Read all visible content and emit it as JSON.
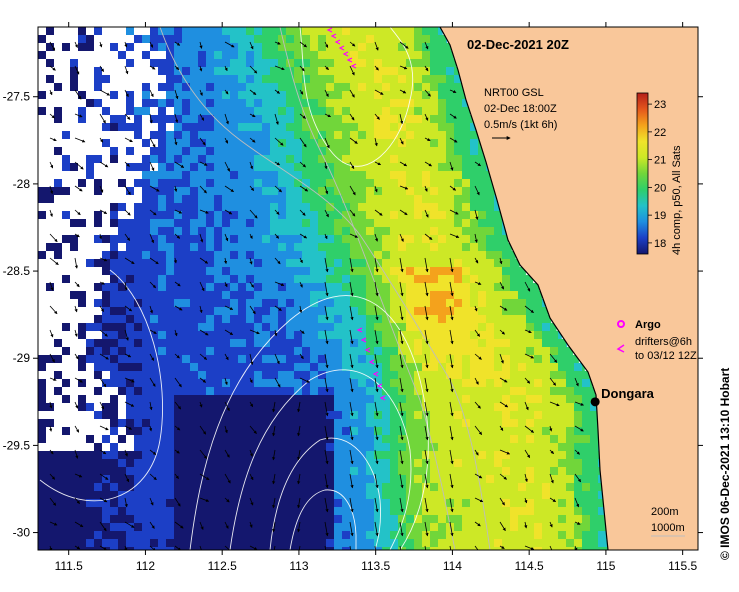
{
  "title": "02-Dec-2021 20Z",
  "current_legend": {
    "lines": [
      "NRT00 GSL",
      "02-Dec 18:00Z",
      "0.5m/s (1kt 6h)"
    ]
  },
  "colorbar": {
    "label": "4h comp, p50, All Sats",
    "ticks": [
      "18",
      "19",
      "20",
      "21",
      "22",
      "23"
    ],
    "range": [
      17.6,
      23.4
    ],
    "colors": [
      "#14176e",
      "#1c3fc6",
      "#1f8fe0",
      "#23c2c8",
      "#2fcf6a",
      "#71d63a",
      "#cde826",
      "#f0e32a",
      "#f4a21c",
      "#e4561c",
      "#b51f1a"
    ]
  },
  "map": {
    "lon_range": [
      111.3,
      115.6
    ],
    "lat_range": [
      -30.1,
      -27.1
    ],
    "x_ticks": [
      "111.5",
      "112",
      "112.5",
      "113",
      "113.5",
      "114",
      "114.5",
      "115",
      "115.5"
    ],
    "y_ticks": [
      "-27.5",
      "-28",
      "-28.5",
      "-29",
      "-29.5",
      "-30"
    ],
    "land_color": "#f9c79a",
    "missing_color": "#ffffff"
  },
  "legend": {
    "argo": "Argo",
    "drifters_line1": "drifters@6h",
    "drifters_line2": "to 03/12 12Z",
    "marker_color": "#ff00ff"
  },
  "places": [
    {
      "name": "Dongara",
      "lon": 114.93,
      "lat": -29.25
    }
  ],
  "depth_legend": {
    "a": "200m",
    "b": "1000m"
  },
  "credit": "© IMOS 06-Dec-2021 13:10 Hobart"
}
